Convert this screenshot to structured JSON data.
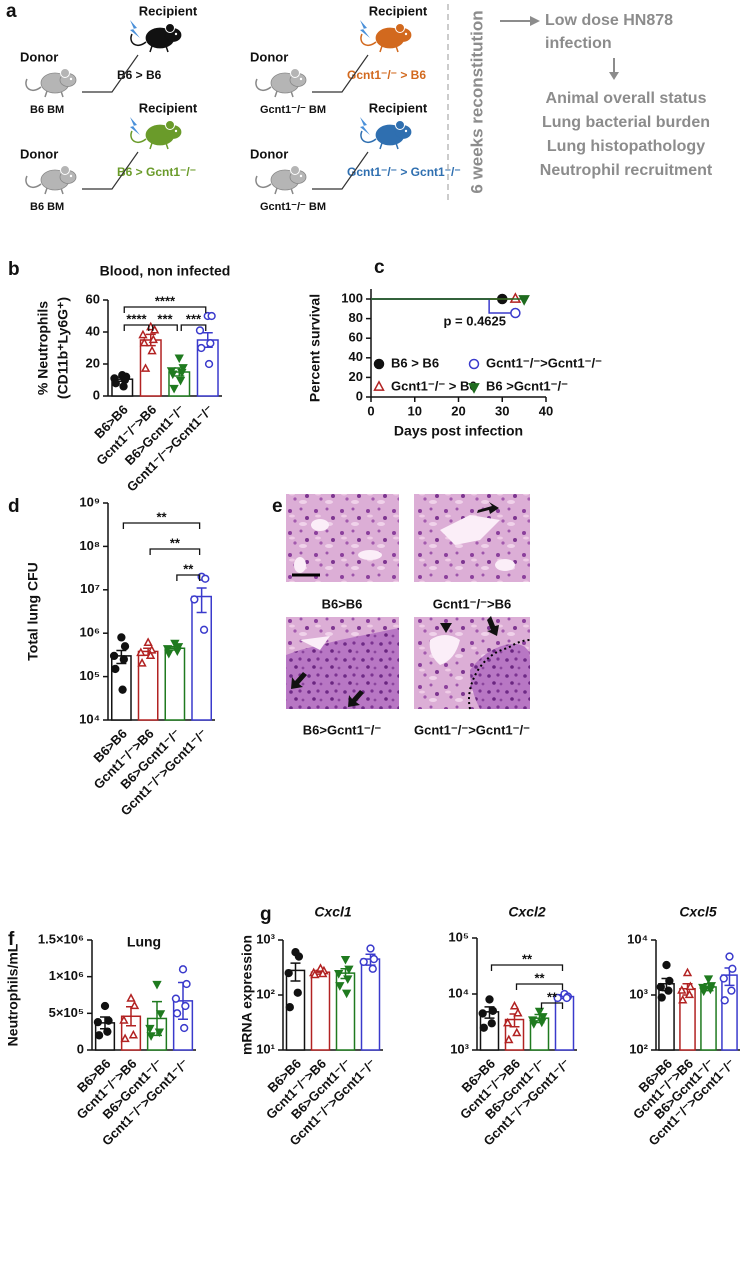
{
  "panel_a": {
    "label": "a",
    "groups": [
      {
        "donor": "Donor",
        "recipient": "Recipient",
        "transfer": "B6 > B6",
        "marrow": "B6 BM",
        "color": "#111111"
      },
      {
        "donor": "Donor",
        "recipient": "Recipient",
        "transfer": "Gcnt1⁻/⁻ > B6",
        "marrow": "Gcnt1⁻/⁻ BM",
        "color": "#d2691e"
      },
      {
        "donor": "Donor",
        "recipient": "Recipient",
        "transfer": "B6 > Gcnt1⁻/⁻",
        "marrow": "B6 BM",
        "color": "#6a9b2a"
      },
      {
        "donor": "Donor",
        "recipient": "Recipient",
        "transfer": "Gcnt1⁻/⁻ > Gcnt1⁻/⁻",
        "marrow": "Gcnt1⁻/⁻ BM",
        "color": "#2f6fb0"
      }
    ],
    "reconstitution": "6 weeks reconstitution",
    "infection": [
      "Low dose HN878",
      "infection"
    ],
    "readouts": [
      "Animal overall status",
      "Lung bacterial burden",
      "Lung histopathology",
      "Neutrophil recruitment"
    ]
  },
  "panel_e": {
    "label": "e",
    "images": [
      "B6>B6",
      "Gcnt1⁻/⁻>B6",
      "B6>Gcnt1⁻/⁻",
      "Gcnt1⁻/⁻>Gcnt1⁻/⁻"
    ]
  },
  "chart_data": [
    {
      "type": "bar",
      "panel": "b",
      "title": "Blood, non infected",
      "y_label": [
        "% Neutrophils",
        "(CD11b⁺Ly6G⁺)"
      ],
      "categories": [
        "B6>B6",
        "Gcnt1⁻/⁻>B6",
        "B6>Gcnt1⁻/⁻",
        "Gcnt1⁻/⁻>Gcnt1⁻/⁻"
      ],
      "colors": [
        "#111111",
        "#b22222",
        "#1f7a1f",
        "#3a3acc"
      ],
      "markers": [
        "circle",
        "triangle",
        "triangle-down",
        "circle"
      ],
      "hollow": [
        false,
        true,
        false,
        true
      ],
      "values": [
        10.5,
        35,
        15,
        35
      ],
      "errors": [
        1.3,
        3.5,
        2.5,
        4.5
      ],
      "points": [
        [
          13,
          12,
          11,
          10,
          8,
          6
        ],
        [
          43,
          41,
          38,
          35,
          33,
          28,
          17
        ],
        [
          24,
          18,
          16,
          15,
          14,
          10,
          5
        ],
        [
          50,
          50,
          41,
          33,
          30,
          20
        ]
      ],
      "ylim": [
        0,
        60
      ],
      "yticks": [
        0,
        20,
        40,
        60
      ],
      "log": false,
      "comparisons": [
        {
          "between": [
            0,
            3
          ],
          "label": "****"
        },
        {
          "between": [
            0,
            1
          ],
          "label": "****"
        },
        {
          "between": [
            1,
            2
          ],
          "label": "***"
        },
        {
          "between": [
            2,
            3
          ],
          "label": "***"
        }
      ]
    },
    {
      "type": "line",
      "panel": "c",
      "y_label": "Percent survival",
      "x_label": "Days post infection",
      "annotation": "p = 0.4625",
      "xlim": [
        0,
        40
      ],
      "xticks": [
        0,
        10,
        20,
        30,
        40
      ],
      "ylim": [
        0,
        100
      ],
      "yticks": [
        0,
        20,
        40,
        60,
        80,
        100
      ],
      "series": [
        {
          "name": "B6 > B6",
          "color": "#111111",
          "marker": "circle",
          "hollow": false,
          "x": [
            0,
            30
          ],
          "values": [
            100,
            100
          ]
        },
        {
          "name": "Gcnt1⁻/⁻ > B6",
          "color": "#b22222",
          "marker": "triangle",
          "hollow": true,
          "x": [
            0,
            33
          ],
          "values": [
            100,
            100
          ]
        },
        {
          "name": "Gcnt1⁻/⁻>Gcnt1⁻/⁻",
          "color": "#3a3acc",
          "marker": "circle",
          "hollow": true,
          "x": [
            0,
            27,
            27,
            33
          ],
          "values": [
            100,
            100,
            85.7,
            85.7
          ]
        },
        {
          "name": "B6 >Gcnt1⁻/⁻",
          "color": "#1f6b1f",
          "marker": "triangle-down",
          "hollow": false,
          "x": [
            0,
            35
          ],
          "values": [
            100,
            100
          ]
        }
      ]
    },
    {
      "type": "bar",
      "panel": "d",
      "y_label": "Total lung CFU",
      "categories": [
        "B6>B6",
        "Gcnt1⁻/⁻>B6",
        "B6>Gcnt1⁻/⁻",
        "Gcnt1⁻/⁻>Gcnt1⁻/⁻"
      ],
      "colors": [
        "#111111",
        "#b22222",
        "#1f7a1f",
        "#3a3acc"
      ],
      "markers": [
        "circle",
        "triangle",
        "triangle-down",
        "circle"
      ],
      "hollow": [
        false,
        true,
        false,
        true
      ],
      "values": [
        300000,
        380000,
        450000,
        7000000
      ],
      "errors": [
        100000,
        70000,
        40000,
        4000000
      ],
      "points": [
        [
          800000,
          500000,
          300000,
          250000,
          150000,
          50000
        ],
        [
          600000,
          400000,
          350000,
          300000,
          200000
        ],
        [
          600000,
          500000,
          450000,
          400000,
          350000
        ],
        [
          20000000,
          18000000,
          6000000,
          1200000
        ]
      ],
      "ylim": [
        10000,
        1000000000
      ],
      "log": true,
      "yticks": [
        {
          "value": 10000,
          "label": "10⁴"
        },
        {
          "value": 100000,
          "label": "10⁵"
        },
        {
          "value": 1000000,
          "label": "10⁶"
        },
        {
          "value": 10000000,
          "label": "10⁷"
        },
        {
          "value": 100000000,
          "label": "10⁸"
        },
        {
          "value": 1000000000,
          "label": "10⁹"
        }
      ],
      "comparisons": [
        {
          "between": [
            0,
            3
          ],
          "label": "**"
        },
        {
          "between": [
            1,
            3
          ],
          "label": "**"
        },
        {
          "between": [
            2,
            3
          ],
          "label": "**"
        }
      ]
    },
    {
      "type": "bar",
      "panel": "f",
      "title": "Lung",
      "y_label": "Neutrophils/mL",
      "categories": [
        "B6>B6",
        "Gcnt1⁻/⁻>B6",
        "B6>Gcnt1⁻/⁻",
        "Gcnt1⁻/⁻>Gcnt1⁻/⁻"
      ],
      "colors": [
        "#111111",
        "#b22222",
        "#1f7a1f",
        "#3a3acc"
      ],
      "markers": [
        "circle",
        "triangle",
        "triangle-down",
        "circle"
      ],
      "hollow": [
        false,
        true,
        false,
        true
      ],
      "values": [
        370000,
        460000,
        430000,
        670000
      ],
      "errors": [
        80000,
        130000,
        230000,
        250000
      ],
      "points": [
        [
          600000,
          400000,
          380000,
          250000,
          200000
        ],
        [
          700000,
          600000,
          400000,
          200000,
          150000
        ],
        [
          900000,
          500000,
          300000,
          250000,
          200000
        ],
        [
          1100000,
          900000,
          700000,
          600000,
          500000,
          300000
        ]
      ],
      "ylim": [
        0,
        1500000
      ],
      "log": false,
      "yticks": [
        0,
        {
          "value": 500000,
          "label": "5×10⁵"
        },
        {
          "value": 1000000,
          "label": "1×10⁶"
        },
        {
          "value": 1500000,
          "label": "1.5×10⁶"
        }
      ]
    },
    {
      "type": "bar",
      "panel": "g",
      "title": "Cxcl1",
      "y_label": "mRNA expression",
      "categories": [
        "B6>B6",
        "Gcnt1⁻/⁻>B6",
        "B6>Gcnt1⁻/⁻",
        "Gcnt1⁻/⁻>Gcnt1⁻/⁻"
      ],
      "colors": [
        "#111111",
        "#b22222",
        "#1f7a1f",
        "#3a3acc"
      ],
      "markers": [
        "circle",
        "triangle",
        "triangle-down",
        "circle"
      ],
      "hollow": [
        false,
        true,
        false,
        true
      ],
      "values": [
        280,
        260,
        250,
        450
      ],
      "errors": [
        100,
        20,
        50,
        100
      ],
      "points": [
        [
          600,
          500,
          250,
          110,
          60
        ],
        [
          300,
          270,
          250,
          240,
          230
        ],
        [
          450,
          300,
          250,
          200,
          150,
          110
        ],
        [
          700,
          450,
          400,
          300
        ]
      ],
      "ylim": [
        10,
        1000
      ],
      "log": true,
      "yticks": [
        {
          "value": 10,
          "label": "10¹"
        },
        {
          "value": 100,
          "label": "10²"
        },
        {
          "value": 1000,
          "label": "10³"
        }
      ]
    },
    {
      "type": "bar",
      "title": "Cxcl2",
      "categories": [
        "B6>B6",
        "Gcnt1⁻/⁻>B6",
        "B6>Gcnt1⁻/⁻",
        "Gcnt1⁻/⁻>Gcnt1⁻/⁻"
      ],
      "colors": [
        "#111111",
        "#b22222",
        "#1f7a1f",
        "#3a3acc"
      ],
      "markers": [
        "circle",
        "triangle",
        "triangle-down",
        "circle"
      ],
      "hollow": [
        false,
        true,
        false,
        true
      ],
      "values": [
        4800,
        3500,
        3700,
        9000
      ],
      "errors": [
        1100,
        900,
        600,
        700
      ],
      "points": [
        [
          8000,
          5000,
          4500,
          3000,
          2500
        ],
        [
          6000,
          4500,
          3000,
          2000,
          1500
        ],
        [
          5000,
          4000,
          3500,
          3200,
          3000
        ],
        [
          10000,
          9000,
          8500,
          8500
        ]
      ],
      "ylim": [
        1000,
        100000
      ],
      "log": true,
      "yticks": [
        {
          "value": 1000,
          "label": "10³"
        },
        {
          "value": 10000,
          "label": "10⁴"
        },
        {
          "value": 100000,
          "label": "10⁵"
        }
      ],
      "comparisons": [
        {
          "between": [
            0,
            3
          ],
          "label": "**"
        },
        {
          "between": [
            1,
            3
          ],
          "label": "**"
        },
        {
          "between": [
            2,
            3
          ],
          "label": "**"
        }
      ]
    },
    {
      "type": "bar",
      "title": "Cxcl5",
      "categories": [
        "B6>B6",
        "Gcnt1⁻/⁻>B6",
        "B6>Gcnt1⁻/⁻",
        "Gcnt1⁻/⁻>Gcnt1⁻/⁻"
      ],
      "colors": [
        "#111111",
        "#b22222",
        "#1f7a1f",
        "#3a3acc"
      ],
      "markers": [
        "circle",
        "triangle",
        "triangle-down",
        "circle"
      ],
      "hollow": [
        false,
        true,
        false,
        true
      ],
      "values": [
        1600,
        1300,
        1400,
        2300
      ],
      "errors": [
        400,
        300,
        200,
        800
      ],
      "points": [
        [
          3500,
          1800,
          1400,
          1200,
          900
        ],
        [
          2500,
          1400,
          1200,
          1000,
          800
        ],
        [
          2000,
          1500,
          1400,
          1300,
          1200
        ],
        [
          5000,
          3000,
          2000,
          1200,
          800
        ]
      ],
      "ylim": [
        100,
        10000
      ],
      "log": true,
      "yticks": [
        {
          "value": 100,
          "label": "10²"
        },
        {
          "value": 1000,
          "label": "10³"
        },
        {
          "value": 10000,
          "label": "10⁴"
        }
      ]
    }
  ]
}
